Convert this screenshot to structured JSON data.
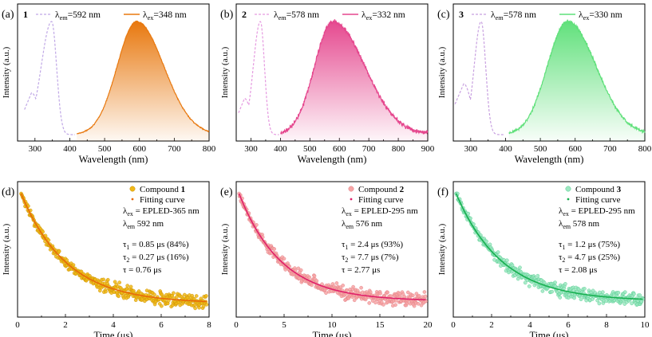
{
  "chart_data": [
    {
      "panel_label": "(a)",
      "compound": "1",
      "type": "line",
      "legend": [
        {
          "sym": "λ",
          "sub": "em",
          "rest": "=592 nm",
          "style": "dashed",
          "color": "#c0a8e6"
        },
        {
          "sym": "λ",
          "sub": "ex",
          "rest": "=348 nm",
          "style": "filled",
          "color": "#e8780e"
        }
      ],
      "xlabel": "Wavelength (nm)",
      "ylabel": "Intensity (a.u.)",
      "xlim": [
        250,
        800
      ],
      "xticks": [
        300,
        400,
        500,
        600,
        700,
        800
      ],
      "excitation": {
        "peak": 348,
        "sigma_left": 30,
        "sigma_right": 14,
        "shoulder_at": 290,
        "shoulder_level": 0.37,
        "start": 270,
        "end": 415
      },
      "emission": {
        "peak": 592,
        "sigma_left": 56,
        "sigma_right": 78,
        "start": 420,
        "end": 800,
        "noise": 0.005
      }
    },
    {
      "panel_label": "(b)",
      "compound": "2",
      "type": "line",
      "legend": [
        {
          "sym": "λ",
          "sub": "em",
          "rest": "=578 nm",
          "style": "dashed",
          "color": "#e59ae0"
        },
        {
          "sym": "λ",
          "sub": "ex",
          "rest": "=332 nm",
          "style": "filled",
          "color": "#e5478e"
        }
      ],
      "xlabel": "Wavelength (nm)",
      "ylabel": "Intensity (a.u.)",
      "xlim": [
        250,
        900
      ],
      "xticks": [
        300,
        400,
        500,
        600,
        700,
        800,
        900
      ],
      "excitation": {
        "peak": 332,
        "sigma_left": 24,
        "sigma_right": 14,
        "shoulder_at": 278,
        "shoulder_level": 0.32,
        "start": 258,
        "end": 395
      },
      "emission": {
        "peak": 578,
        "sigma_left": 62,
        "sigma_right": 108,
        "start": 400,
        "end": 900,
        "noise": 0.02
      }
    },
    {
      "panel_label": "(c)",
      "compound": "3",
      "type": "line",
      "legend": [
        {
          "sym": "λ",
          "sub": "em",
          "rest": "=578 nm",
          "style": "dashed",
          "color": "#c8a0e0"
        },
        {
          "sym": "λ",
          "sub": "ex",
          "rest": "=330 nm",
          "style": "filled",
          "color": "#5fe07a"
        }
      ],
      "xlabel": "Wavelength (nm)",
      "ylabel": "Intensity (a.u.)",
      "xlim": [
        250,
        800
      ],
      "xticks": [
        300,
        400,
        500,
        600,
        700,
        800
      ],
      "excitation": {
        "peak": 330,
        "sigma_left": 20,
        "sigma_right": 13,
        "shoulder_at": 280,
        "shoulder_level": 0.45,
        "start": 255,
        "end": 395
      },
      "emission": {
        "peak": 578,
        "sigma_left": 58,
        "sigma_right": 82,
        "start": 410,
        "end": 800,
        "noise": 0.012
      }
    },
    {
      "panel_label": "(d)",
      "type": "scatter",
      "legend": [
        {
          "label": "Compound ",
          "bold": "1",
          "marker": "circle"
        },
        {
          "label": "Fitting curve",
          "marker": "dot"
        }
      ],
      "annotations": [
        {
          "sym": "λ",
          "sub": "ex",
          "rest": " = EPLED-365 nm"
        },
        {
          "sym": "λ",
          "sub": "em",
          "rest": " 592 nm"
        },
        {
          "sym": "τ",
          "sub": "1",
          "rest": " = 0.85 μs (84%)"
        },
        {
          "sym": "τ",
          "sub": "2",
          "rest": " = 0.27 μs (16%)"
        },
        {
          "sym": "τ",
          "sub": "",
          "rest": " = 0.76 μs"
        }
      ],
      "xlabel": "Time (μs)",
      "ylabel": "Intensity (a.u.)",
      "xlim": [
        0,
        8
      ],
      "xticks": [
        0,
        2,
        4,
        6,
        8
      ],
      "decay": {
        "t_start": 0.15,
        "t_end": 7.9,
        "tau": 1.9,
        "floor": 0.05,
        "n_points": 420,
        "noise": 0.045
      },
      "marker_color": "#f0b818",
      "marker_edge": "#c98e00",
      "fit_color": "#e86a0a"
    },
    {
      "panel_label": "(e)",
      "type": "scatter",
      "legend": [
        {
          "label": "Compound ",
          "bold": "2",
          "marker": "circle"
        },
        {
          "label": "Fitting curve",
          "marker": "dot"
        }
      ],
      "annotations": [
        {
          "sym": "λ",
          "sub": "ex",
          "rest": " = EPLED-295 nm"
        },
        {
          "sym": "λ",
          "sub": "em",
          "rest": " 576 nm"
        },
        {
          "sym": "τ",
          "sub": "1",
          "rest": " = 2.4 μs (93%)"
        },
        {
          "sym": "τ",
          "sub": "2",
          "rest": " = 7.7 μs (7%)"
        },
        {
          "sym": "τ",
          "sub": "",
          "rest": " = 2.77 μs"
        }
      ],
      "xlabel": "Time (μs)",
      "ylabel": "Intensity (a.u.)",
      "xlim": [
        0,
        20
      ],
      "xticks": [
        0,
        5,
        10,
        15,
        20
      ],
      "decay": {
        "t_start": 0.3,
        "t_end": 19.8,
        "tau": 4.4,
        "floor": 0.07,
        "n_points": 420,
        "noise": 0.045
      },
      "marker_color": "#f7a5a5",
      "marker_edge": "#e07c84",
      "fit_color": "#e0206a"
    },
    {
      "panel_label": "(f)",
      "type": "scatter",
      "legend": [
        {
          "label": "Compound ",
          "bold": "3",
          "marker": "circle"
        },
        {
          "label": "Fitting curve",
          "marker": "dot"
        }
      ],
      "annotations": [
        {
          "sym": "λ",
          "sub": "ex",
          "rest": " = EPLED-295 nm"
        },
        {
          "sym": "λ",
          "sub": "em",
          "rest": " 578 nm"
        },
        {
          "sym": "τ",
          "sub": "1",
          "rest": " = 1.2 μs (75%)"
        },
        {
          "sym": "τ",
          "sub": "2",
          "rest": " = 4.7 μs (25%)"
        },
        {
          "sym": "τ",
          "sub": "",
          "rest": " = 2.08 μs"
        }
      ],
      "xlabel": "Time (μs)",
      "ylabel": "Intensity (a.u.)",
      "xlim": [
        0,
        10
      ],
      "xticks": [
        0,
        2,
        4,
        6,
        8,
        10
      ],
      "decay": {
        "t_start": 0.15,
        "t_end": 9.9,
        "tau": 2.4,
        "floor": 0.07,
        "n_points": 420,
        "noise": 0.045
      },
      "marker_color": "#9ee8c2",
      "marker_edge": "#4cc98a",
      "fit_color": "#18b050"
    }
  ]
}
